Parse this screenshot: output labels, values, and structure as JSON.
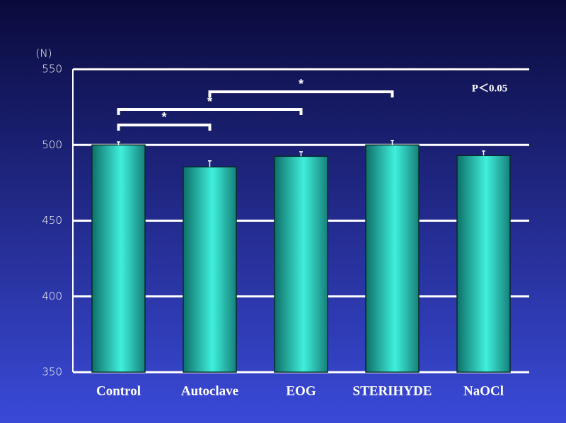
{
  "chart_data": {
    "type": "bar",
    "y_label": "(N)",
    "annotation": "P＜0.05",
    "categories": [
      "Control",
      "Autoclave",
      "EOG",
      "STERIHYDE",
      "NaOCl"
    ],
    "values": [
      500,
      485.5,
      492.5,
      500,
      493
    ],
    "errors": [
      2,
      4,
      3,
      3,
      3
    ],
    "color": "#2fd6c4",
    "ylim": [
      350,
      550
    ],
    "yticks": [
      350,
      400,
      450,
      500,
      550
    ],
    "grid": true,
    "significance": [
      {
        "from": "Control",
        "to": "Autoclave",
        "label": "*"
      },
      {
        "from": "Control",
        "to": "EOG",
        "label": "*"
      },
      {
        "from": "Autoclave",
        "to": "STERIHYDE",
        "label": "*"
      }
    ]
  }
}
